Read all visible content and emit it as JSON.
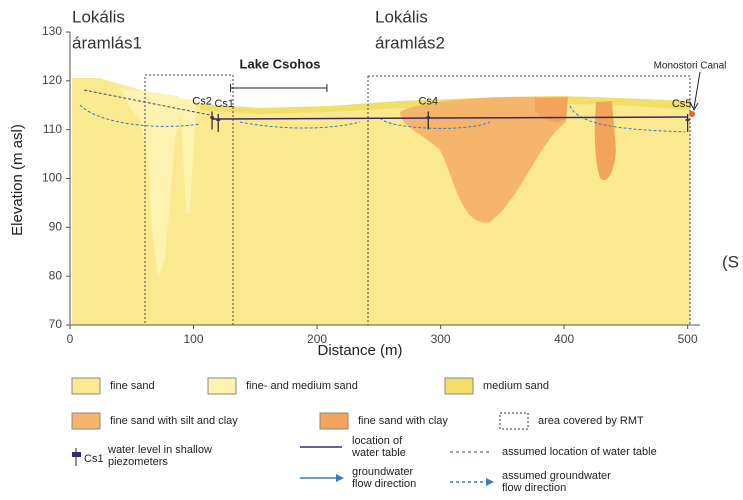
{
  "chart_data": {
    "type": "cross-section",
    "xlabel": "Distance (m)",
    "ylabel": "Elevation (m asl)",
    "xlim": [
      0,
      510
    ],
    "ylim": [
      70,
      130
    ],
    "xticks": [
      0,
      100,
      200,
      300,
      400,
      500
    ],
    "yticks": [
      70,
      80,
      90,
      100,
      110,
      120,
      130
    ],
    "points": [
      {
        "name": "Cs2",
        "x": 115,
        "y": 112.5
      },
      {
        "name": "Cs1",
        "x": 120,
        "y": 112
      },
      {
        "name": "Cs4",
        "x": 290,
        "y": 112.5
      },
      {
        "name": "Cs5",
        "x": 500,
        "y": 112
      }
    ],
    "lake": {
      "label": "Lake Csohos",
      "extent": [
        130,
        208
      ]
    },
    "canal": "Monostori Canal",
    "local_flow_1": [
      "Lokális",
      "áramlás1"
    ],
    "local_flow_2": [
      "Lokális",
      "áramlás2"
    ],
    "cut_text": "(S",
    "legend": [
      {
        "label": [
          "fine sand"
        ],
        "color": "#fbe98f"
      },
      {
        "label": [
          "fine- and medium sand"
        ],
        "color": "#fdf3b0"
      },
      {
        "label": [
          "medium sand"
        ],
        "color": "#f1df6a"
      },
      {
        "label": [
          "fine sand with silt and clay"
        ],
        "color": "#f6b56c"
      },
      {
        "label": [
          "fine sand with clay"
        ],
        "color": "#f2a45a"
      },
      {
        "label": [
          "area covered by RMT"
        ],
        "color": "#333333"
      },
      {
        "label": [
          "water level in shallow",
          "piezometers"
        ],
        "color": "#3a2a6a",
        "marker": "Cs1"
      },
      {
        "label": [
          "location of",
          "water table"
        ],
        "color": "#3a2a6a"
      },
      {
        "label": [
          "assumed location of water table"
        ],
        "color": "#3a4a7a"
      },
      {
        "label": [
          "groundwater",
          "flow direction"
        ],
        "color": "#3b7bbf"
      },
      {
        "label": [
          "assumed groundwater",
          "flow direction"
        ],
        "color": "#3b7bbf"
      }
    ]
  }
}
